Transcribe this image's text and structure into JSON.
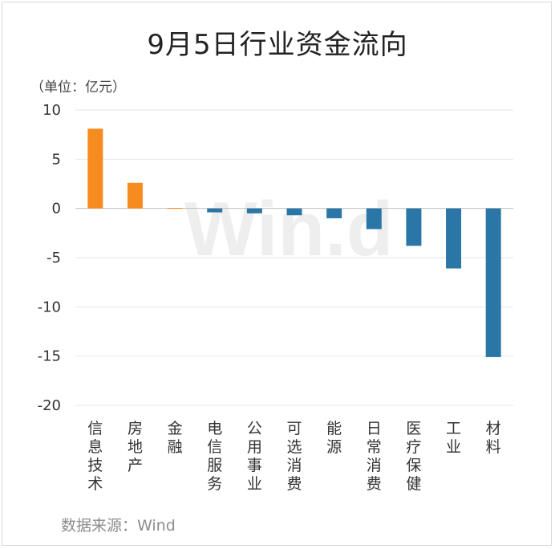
{
  "title": "9月5日行业资金流向",
  "unit_label": "（单位：亿元）",
  "source": "数据来源：Wind",
  "watermark": "Win.d",
  "colors": {
    "positive": "#f68b1f",
    "negative": "#2a77a7",
    "grid": "#e6e6e6",
    "axis": "#bfbfbf"
  },
  "chart_data": {
    "type": "bar",
    "categories": [
      "信息技术",
      "房地产",
      "金融",
      "电信服务",
      "公用事业",
      "可选消费",
      "能源",
      "日常消费",
      "医疗保健",
      "工业",
      "材料"
    ],
    "values": [
      8.1,
      2.6,
      0.05,
      -0.4,
      -0.5,
      -0.7,
      -1.0,
      -2.1,
      -3.8,
      -6.1,
      -15.1
    ],
    "ylim": [
      -20,
      10
    ],
    "yticks": [
      10,
      5,
      0,
      -5,
      -10,
      -15,
      -20
    ],
    "ytick_labels": [
      "10",
      "5",
      "0",
      "-5",
      "-10",
      "-15",
      "-20"
    ],
    "grid": true,
    "title": "9月5日行业资金流向",
    "xlabel": "",
    "ylabel": "（单位：亿元）"
  }
}
